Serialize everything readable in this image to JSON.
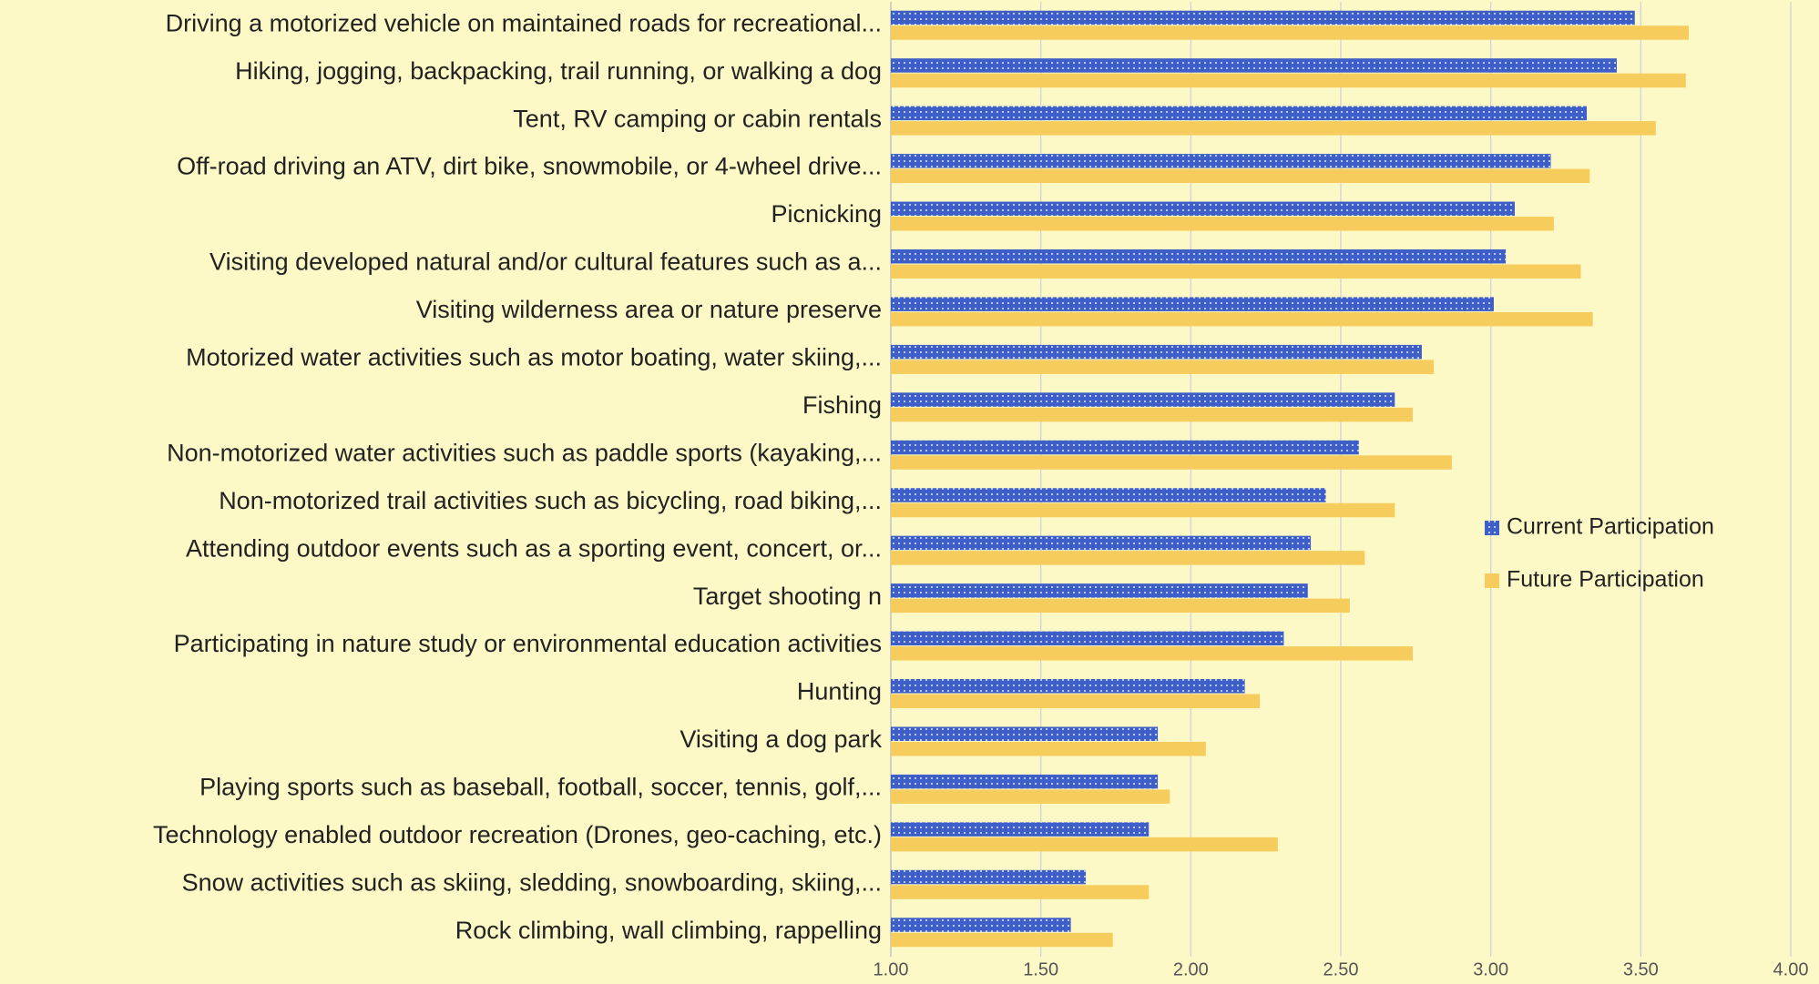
{
  "chart_data": {
    "type": "bar",
    "orientation": "horizontal",
    "categories": [
      "Driving a motorized vehicle on maintained roads for recreational...",
      "Hiking, jogging, backpacking, trail running, or walking a dog",
      "Tent, RV camping or cabin rentals",
      "Off-road driving an ATV, dirt bike, snowmobile, or 4-wheel drive...",
      "Picnicking",
      "Visiting developed natural and/or cultural features such as a...",
      "Visiting wilderness area or nature preserve",
      "Motorized water activities such as motor boating, water skiing,...",
      "Fishing",
      "Non-motorized water activities such as paddle sports (kayaking,...",
      "Non-motorized trail activities such as bicycling, road biking,...",
      "Attending outdoor events such as a sporting event, concert, or...",
      "Target shooting n",
      "Participating in nature study or environmental education activities",
      "Hunting",
      "Visiting a dog park",
      "Playing sports such as baseball, football, soccer, tennis, golf,...",
      "Technology enabled outdoor recreation (Drones, geo-caching, etc.)",
      "Snow activities such as skiing, sledding, snowboarding, skiing,...",
      "Rock climbing, wall climbing, rappelling"
    ],
    "series": [
      {
        "name": "Current Participation",
        "color": "#3f5fc8",
        "pattern": "dots",
        "values": [
          3.48,
          3.42,
          3.32,
          3.2,
          3.08,
          3.05,
          3.01,
          2.77,
          2.68,
          2.56,
          2.45,
          2.4,
          2.39,
          2.31,
          2.18,
          1.89,
          1.89,
          1.86,
          1.65,
          1.6
        ]
      },
      {
        "name": "Future Participation",
        "color": "#f6cd5c",
        "values": [
          3.66,
          3.65,
          3.55,
          3.33,
          3.21,
          3.3,
          3.34,
          2.81,
          2.74,
          2.87,
          2.68,
          2.58,
          2.53,
          2.74,
          2.23,
          2.05,
          1.93,
          2.29,
          1.86,
          1.74
        ]
      }
    ],
    "xlim": [
      1,
      4
    ],
    "xticks": [
      {
        "value": 1,
        "label": "1.00"
      },
      {
        "value": 1.5,
        "label": "1.50"
      },
      {
        "value": 2,
        "label": "2.00"
      },
      {
        "value": 2.5,
        "label": "2.50"
      },
      {
        "value": 3,
        "label": "3.00"
      },
      {
        "value": 3.5,
        "label": "3.50"
      },
      {
        "value": 4,
        "label": "4.00"
      }
    ],
    "grid": true,
    "legend": "right"
  }
}
